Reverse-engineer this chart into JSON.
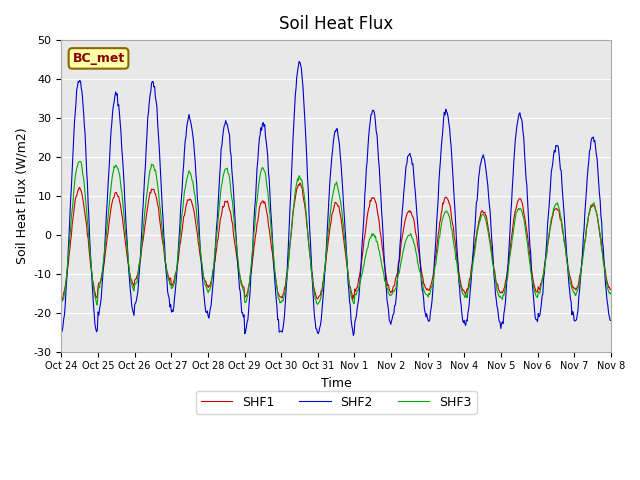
{
  "title": "Soil Heat Flux",
  "xlabel": "Time",
  "ylabel": "Soil Heat Flux (W/m2)",
  "ylim": [
    -30,
    50
  ],
  "yticks": [
    -30,
    -20,
    -10,
    0,
    10,
    20,
    30,
    40,
    50
  ],
  "xtick_labels": [
    "Oct 24",
    "Oct 25",
    "Oct 26",
    "Oct 27",
    "Oct 28",
    "Oct 29",
    "Oct 30",
    "Oct 31",
    "Nov 1",
    "Nov 2",
    "Nov 3",
    "Nov 4",
    "Nov 5",
    "Nov 6",
    "Nov 7",
    "Nov 8"
  ],
  "legend_labels": [
    "SHF1",
    "SHF2",
    "SHF3"
  ],
  "legend_colors": [
    "#cc0000",
    "#0000cc",
    "#00aa00"
  ],
  "bg_color": "#e8e8e8",
  "box_label": "BC_met",
  "box_facecolor": "#ffffaa",
  "box_edgecolor": "#886600",
  "box_textcolor": "#880000",
  "shf2_peaks": [
    40,
    36,
    39,
    30,
    29,
    29,
    44,
    27,
    32,
    21,
    32,
    20,
    31,
    23,
    25
  ],
  "shf2_troughs": [
    -25,
    -20,
    -18,
    -20,
    -21,
    -25,
    -25,
    -25,
    -22,
    -22,
    -22,
    -23,
    -23,
    -21,
    -22
  ],
  "shf3_peaks": [
    19,
    18,
    18,
    16,
    17,
    17,
    15,
    13,
    0,
    0,
    6,
    5,
    7,
    8,
    8
  ],
  "n_days": 15,
  "pts_per_day": 48
}
